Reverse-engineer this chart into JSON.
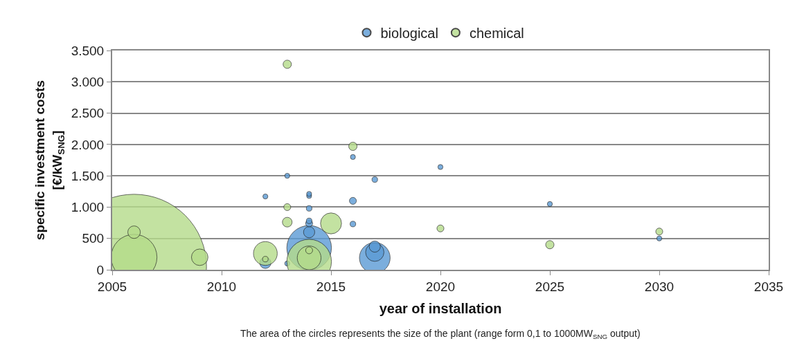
{
  "chart_data": {
    "type": "bubble",
    "xlabel": "year of installation",
    "ylabel": "specific investment costs\n[€/kW$_{SNG}$]",
    "annotations": [
      "The area of the circles represents the size of the plant (range form 0,1 to 1000MW$_{SNG}$ output)"
    ],
    "xlim": [
      2005,
      2035
    ],
    "xticks": [
      2005,
      2010,
      2015,
      2020,
      2025,
      2030,
      2035
    ],
    "ylim": [
      0,
      3500
    ],
    "yticks": [
      0,
      {
        "value": 500,
        "label": "500"
      },
      {
        "value": 1000,
        "label": "1.000"
      },
      {
        "value": 1500,
        "label": "1.500"
      },
      {
        "value": 2000,
        "label": "2.000"
      },
      {
        "value": 2500,
        "label": "2.500"
      },
      {
        "value": 3000,
        "label": "3.000"
      },
      {
        "value": 3500,
        "label": "3.500"
      }
    ],
    "grid": "y",
    "legend": "top",
    "series": [
      {
        "name": "biological",
        "color": "#5b9bd5",
        "x": [
          2012,
          2012,
          2013,
          2013,
          2014,
          2014,
          2014,
          2014,
          2014,
          2014,
          2014,
          2016,
          2016,
          2016,
          2017,
          2017,
          2017,
          2017,
          2020,
          2025,
          2030
        ],
        "values": [
          110,
          1170,
          1500,
          100,
          350,
          600,
          740,
          780,
          980,
          1180,
          1210,
          1800,
          1100,
          730,
          1440,
          190,
          280,
          370,
          1640,
          1050,
          500
        ],
        "sizes": [
          0.006,
          0.0012,
          0.0012,
          0.0012,
          0.095,
          0.006,
          0.0023,
          0.0015,
          0.0015,
          0.0012,
          0.0012,
          0.0012,
          0.0023,
          0.0015,
          0.0015,
          0.045,
          0.016,
          0.006,
          0.0012,
          0.0012,
          0.0012
        ]
      },
      {
        "name": "chemical",
        "color": "#b5dc8a",
        "x": [
          2006,
          2006,
          2006,
          2009,
          2012,
          2012,
          2013,
          2013,
          2013,
          2014,
          2014,
          2014,
          2015,
          2016,
          2020,
          2025,
          2030
        ],
        "values": [
          50,
          200,
          600,
          200,
          260,
          170,
          3280,
          1000,
          760,
          130,
          190,
          310,
          740,
          1970,
          660,
          400,
          610
        ],
        "sizes": [
          1,
          0.1,
          0.0075,
          0.013,
          0.027,
          0.0015,
          0.0033,
          0.0023,
          0.0045,
          0.095,
          0.027,
          0.0023,
          0.021,
          0.0033,
          0.0023,
          0.0033,
          0.0023
        ]
      }
    ]
  }
}
